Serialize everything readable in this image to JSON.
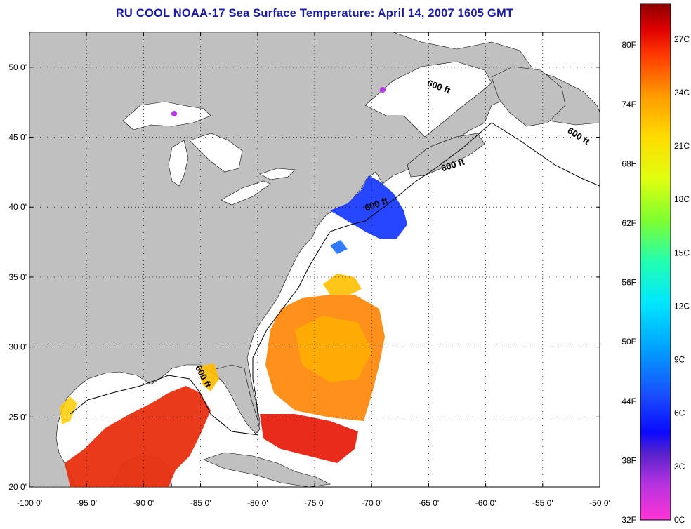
{
  "title": "RU COOL  NOAA-17  Sea Surface Temperature:  April 14, 2007 1605 GMT",
  "map": {
    "lon_min": -100,
    "lon_max": -50,
    "lat_min": 20,
    "lat_max": 52.5,
    "x_ticks": [
      "-100 0'",
      "-95 0'",
      "-90 0'",
      "-85 0'",
      "-80 0'",
      "-75 0'",
      "-70 0'",
      "-65 0'",
      "-60 0'",
      "-55 0'",
      "-50 0'"
    ],
    "x_tick_values": [
      -100,
      -95,
      -90,
      -85,
      -80,
      -75,
      -70,
      -65,
      -60,
      -55,
      -50
    ],
    "y_ticks": [
      "20 0'",
      "25 0'",
      "30 0'",
      "35 0'",
      "40 0'",
      "45 0'",
      "50 0'"
    ],
    "y_tick_values": [
      20,
      25,
      30,
      35,
      40,
      45,
      50
    ],
    "grid": "dotted",
    "contour_label": "600 ft",
    "contour_label_positions": [
      {
        "lon": -64.2,
        "lat": 48.4,
        "angle": 20
      },
      {
        "lon": -52.0,
        "lat": 44.9,
        "angle": 32
      },
      {
        "lon": -62.8,
        "lat": 42.8,
        "angle": -18
      },
      {
        "lon": -69.5,
        "lat": 40.0,
        "angle": -20
      },
      {
        "lon": -85.0,
        "lat": 27.8,
        "angle": 62
      }
    ],
    "land_color": "#c0c0c0",
    "no_data_color": "#ffffff"
  },
  "colorbar": {
    "f_labels": [
      "80F",
      "74F",
      "68F",
      "62F",
      "56F",
      "50F",
      "44F",
      "38F",
      "32F"
    ],
    "f_values": [
      80,
      74,
      68,
      62,
      56,
      50,
      44,
      38,
      32
    ],
    "c_labels": [
      "27C",
      "24C",
      "21C",
      "18C",
      "15C",
      "12C",
      "9C",
      "6C",
      "3C",
      "0C"
    ],
    "c_values": [
      27,
      24,
      21,
      18,
      15,
      12,
      9,
      6,
      3,
      0
    ],
    "range_c": [
      0,
      29
    ]
  }
}
